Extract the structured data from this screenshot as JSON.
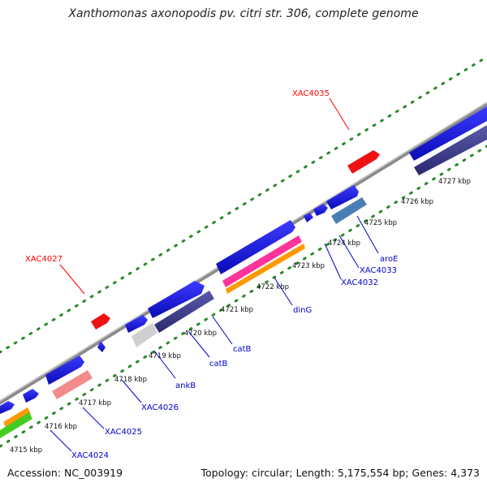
{
  "title": "Xanthomonas axonopodis pv. citri str. 306, complete genome",
  "footer": {
    "accession": "Accession: NC_003919",
    "summary": "Topology: circular; Length: 5,175,554 bp; Genes: 4,373"
  },
  "scale_ticks": [
    {
      "label": "4715 kbp",
      "bp": 4715000
    },
    {
      "label": "4716 kbp",
      "bp": 4716000
    },
    {
      "label": "4717 kbp",
      "bp": 4717000
    },
    {
      "label": "4718 kbp",
      "bp": 4718000
    },
    {
      "label": "4719 kbp",
      "bp": 4719000
    },
    {
      "label": "4720 kbp",
      "bp": 4720000
    },
    {
      "label": "4721 kbp",
      "bp": 4721000
    },
    {
      "label": "4722 kbp",
      "bp": 4722000
    },
    {
      "label": "4723 kbp",
      "bp": 4723000
    },
    {
      "label": "4724 kbp",
      "bp": 4724000
    },
    {
      "label": "4725 kbp",
      "bp": 4725000
    },
    {
      "label": "4726 kbp",
      "bp": 4726000
    },
    {
      "label": "4727 kbp",
      "bp": 4727000
    }
  ],
  "gene_labels_outer": [
    {
      "text": "XAC4035",
      "color": "#ff0000"
    },
    {
      "text": "XAC4027",
      "color": "#ff0000"
    }
  ],
  "gene_labels_inner": [
    {
      "text": "aroE",
      "color": "#0000cc"
    },
    {
      "text": "XAC4033",
      "color": "#0000cc"
    },
    {
      "text": "XAC4032",
      "color": "#0000cc"
    },
    {
      "text": "dinG",
      "color": "#0000cc"
    },
    {
      "text": "catB",
      "color": "#0000cc"
    },
    {
      "text": "catB",
      "color": "#0000cc"
    },
    {
      "text": "ankB",
      "color": "#0000cc"
    },
    {
      "text": "XAC4026",
      "color": "#0000cc"
    },
    {
      "text": "XAC4025",
      "color": "#0000cc"
    },
    {
      "text": "XAC4024",
      "color": "#0000cc"
    }
  ],
  "colors": {
    "backbone": "#8a8a8a",
    "cds_forward": "#1010e0",
    "cds_reverse": "#3d3a8c",
    "highlight_red": "#ee1111",
    "pink": "#ff3399",
    "orange": "#ff9900",
    "green": "#44cc22",
    "steel_blue": "#4a7fb5",
    "light_gray": "#cfcfcf",
    "salmon": "#f28b8b",
    "tick_dots": "#2a8a2a"
  }
}
